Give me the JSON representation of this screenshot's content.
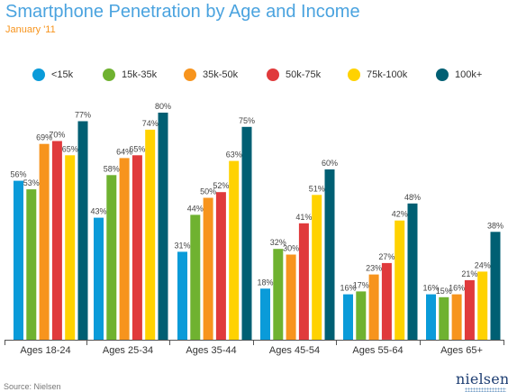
{
  "header": {
    "title": "Smartphone Penetration by Age and Income",
    "subtitle": "January '11"
  },
  "footer": {
    "source": "Source: Nielsen",
    "logo_text": "nielsen"
  },
  "chart_data": {
    "type": "bar",
    "title": "Smartphone Penetration by Age and Income",
    "subtitle": "January '11",
    "xlabel": "",
    "ylabel": "",
    "ylim": [
      0,
      80
    ],
    "grid": false,
    "legend_position": "top",
    "categories": [
      "Ages 18-24",
      "Ages 25-34",
      "Ages 35-44",
      "Ages 45-54",
      "Ages 55-64",
      "Ages 65+"
    ],
    "series": [
      {
        "name": "<15k",
        "color": "#0a9bd9",
        "values": [
          56,
          43,
          31,
          18,
          16,
          16
        ],
        "labels": [
          "56%",
          "43%",
          "31%",
          "18%",
          "16%",
          "16%"
        ]
      },
      {
        "name": "15k-35k",
        "color": "#6fb230",
        "values": [
          53,
          58,
          44,
          32,
          17,
          15
        ],
        "labels": [
          "53%",
          "58%",
          "44%",
          "32%",
          "17%",
          "15%"
        ]
      },
      {
        "name": "35k-50k",
        "color": "#f7941d",
        "values": [
          69,
          64,
          50,
          30,
          23,
          16
        ],
        "labels": [
          "69%",
          "64%",
          "50%",
          "30%",
          "23%",
          "16%"
        ]
      },
      {
        "name": "50k-75k",
        "color": "#e03a3c",
        "values": [
          70,
          65,
          52,
          41,
          27,
          21
        ],
        "labels": [
          "70%",
          "65%",
          "52%",
          "41%",
          "27%",
          "21%"
        ]
      },
      {
        "name": "75k-100k",
        "color": "#ffd200",
        "values": [
          65,
          74,
          63,
          51,
          42,
          24
        ],
        "labels": [
          "65%",
          "74%",
          "63%",
          "51%",
          "42%",
          "24%"
        ]
      },
      {
        "name": "100k+",
        "color": "#005f73",
        "values": [
          77,
          80,
          75,
          60,
          48,
          38
        ],
        "labels": [
          "77%",
          "80%",
          "75%",
          "60%",
          "48%",
          "38%"
        ]
      }
    ]
  }
}
